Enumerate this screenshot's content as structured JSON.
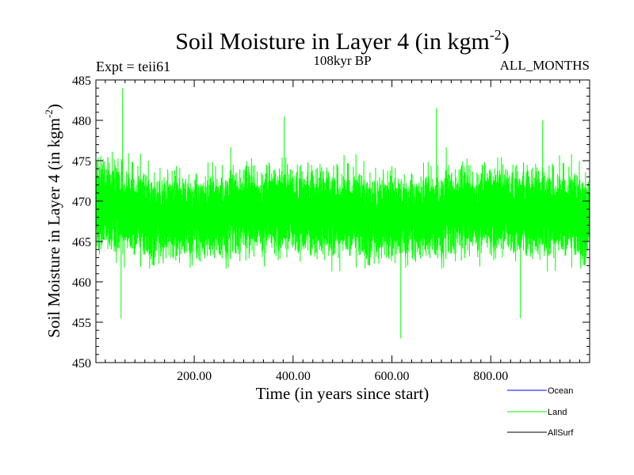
{
  "chart_data": {
    "type": "line",
    "title": "Soil Moisture in Layer 4 (in kgm",
    "title_sup": "-2",
    "title_close": ")",
    "subtitle_left": "Expt = teii61",
    "subtitle_center": "108kyr BP",
    "subtitle_right": "ALL_MONTHS",
    "xlabel": "Time (in years since start)",
    "ylabel": "Soil Moisture in Layer 4 (in kgm",
    "ylabel_sup": "-2",
    "ylabel_close": ")",
    "xlim": [
      1,
      1000
    ],
    "ylim": [
      450,
      485
    ],
    "x_ticks": [
      200,
      400,
      600,
      800
    ],
    "x_tick_labels": [
      "200.00",
      "400.00",
      "600.00",
      "800.00"
    ],
    "y_ticks": [
      450,
      455,
      460,
      465,
      470,
      475,
      480,
      485
    ],
    "y_tick_labels": [
      "450",
      "455",
      "460",
      "465",
      "470",
      "475",
      "480",
      "485"
    ],
    "grid": false,
    "legend_position": "bottom-right",
    "series": [
      {
        "name": "Ocean",
        "color": "#0000ff",
        "values": []
      },
      {
        "name": "Land",
        "color": "#00ff00",
        "mean": 469,
        "band": [
          462,
          476
        ],
        "min": 453,
        "max": 484,
        "extremes": [
          {
            "x": 55,
            "y": 484
          },
          {
            "x": 52,
            "y": 455.5
          },
          {
            "x": 382,
            "y": 480.5
          },
          {
            "x": 618,
            "y": 453
          },
          {
            "x": 690,
            "y": 481.5
          },
          {
            "x": 860,
            "y": 455.5
          },
          {
            "x": 905,
            "y": 480
          }
        ]
      },
      {
        "name": "AllSurf",
        "color": "#000000",
        "values": []
      }
    ]
  }
}
